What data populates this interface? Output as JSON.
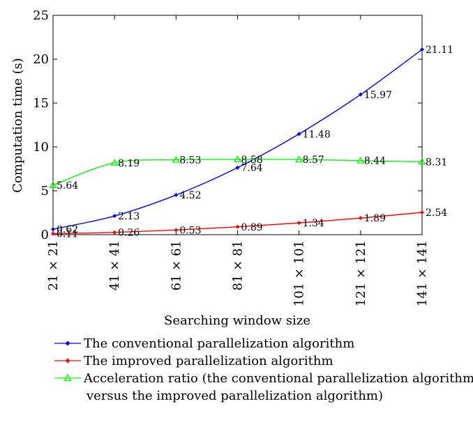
{
  "chart_data": {
    "type": "line",
    "categories": [
      "21 × 21",
      "41 × 41",
      "61 × 61",
      "81 × 81",
      "101 × 101",
      "121 × 121",
      "141 × 141"
    ],
    "xlabel": "Searching window size",
    "ylabel": "Computation time (s)",
    "ylim": [
      0,
      25
    ],
    "yticks": [
      0,
      5,
      10,
      15,
      20,
      25
    ],
    "grid": false,
    "legend_position": "bottom",
    "series": [
      {
        "name": "The conventional parallelization algorithm",
        "values": [
          0.62,
          2.13,
          4.52,
          7.64,
          11.48,
          15.97,
          21.11
        ],
        "labels": [
          "0.62",
          "2.13",
          "4.52",
          "7.64",
          "11.48",
          "15.97",
          "21.11"
        ],
        "color": "#0000ff",
        "marker": "diamond"
      },
      {
        "name": "The improved parallelization algorithm",
        "values": [
          0.11,
          0.26,
          0.53,
          0.89,
          1.34,
          1.89,
          2.54
        ],
        "labels": [
          "0.11",
          "0.26",
          "0.53",
          "0.89",
          "1.34",
          "1.89",
          "2.54"
        ],
        "color": "#ff0000",
        "marker": "diamond"
      },
      {
        "name": "Acceleration ratio (the conventional parallelization algorithm",
        "name_continued": "versus the improved parallelization algorithm)",
        "values": [
          5.64,
          8.19,
          8.53,
          8.58,
          8.57,
          8.44,
          8.31
        ],
        "labels": [
          "5.64",
          "8.19",
          "8.53",
          "8.58",
          "8.57",
          "8.44",
          "8.31"
        ],
        "color": "#00ff00",
        "marker": "triangle"
      }
    ]
  }
}
